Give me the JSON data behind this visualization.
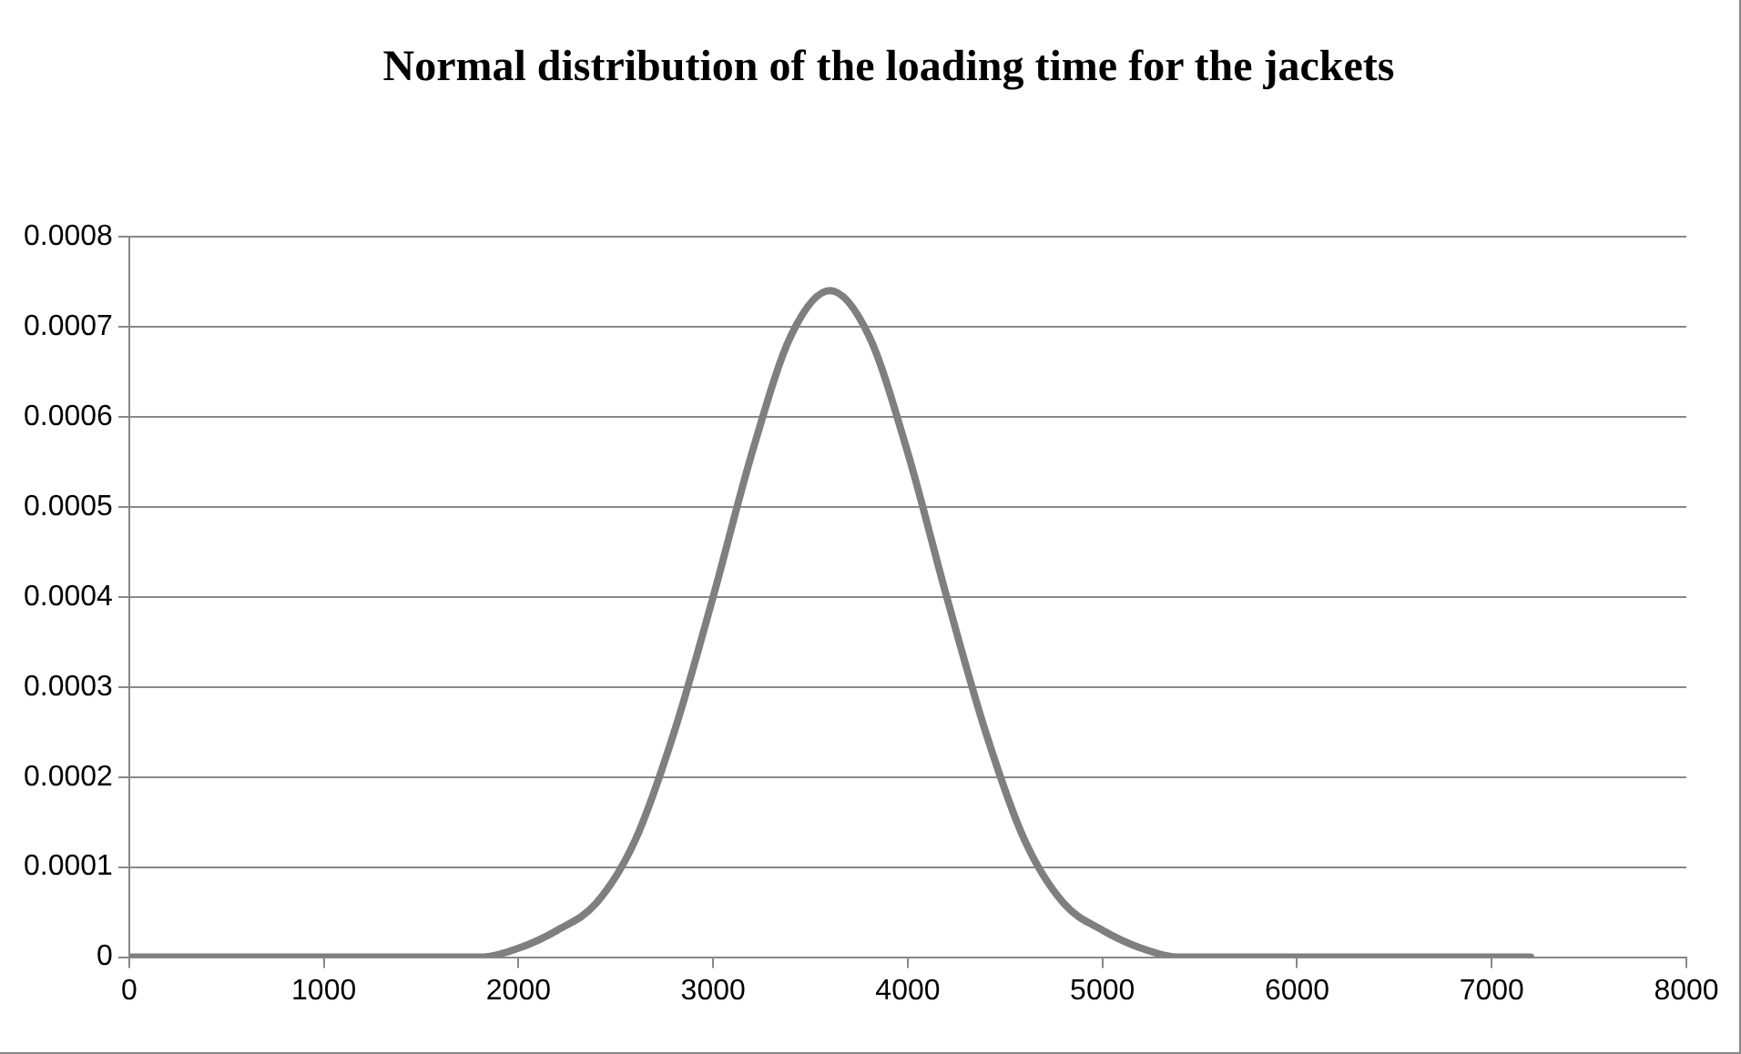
{
  "chart_data": {
    "type": "line",
    "title": "Normal distribution of the loading time for the jackets",
    "x": [
      0,
      1000,
      1600,
      1800,
      2000,
      2200,
      2400,
      2600,
      2800,
      3000,
      3200,
      3400,
      3600,
      3800,
      4000,
      4200,
      4400,
      4600,
      4800,
      5000,
      5200,
      5400,
      5600,
      6200,
      7200
    ],
    "series": [
      {
        "color": "#7f7f7f",
        "values": [
          0,
          0,
          0,
          0,
          1e-05,
          3e-05,
          6e-05,
          0.00013,
          0.00025,
          0.0004,
          0.00056,
          0.00069,
          0.00074,
          0.00069,
          0.00056,
          0.0004,
          0.00025,
          0.00013,
          6e-05,
          3e-05,
          1e-05,
          0,
          0,
          0,
          0
        ]
      }
    ],
    "xlim": [
      0,
      8000
    ],
    "xticks": [
      0,
      1000,
      2000,
      3000,
      4000,
      5000,
      6000,
      7000,
      8000
    ],
    "ylim": [
      0,
      0.0008
    ],
    "yticks": [
      0,
      0.0001,
      0.0002,
      0.0003,
      0.0004,
      0.0005,
      0.0006,
      0.0007,
      0.0008
    ],
    "grid": "y",
    "legend": false,
    "marker": "none",
    "line_style": "solid"
  }
}
